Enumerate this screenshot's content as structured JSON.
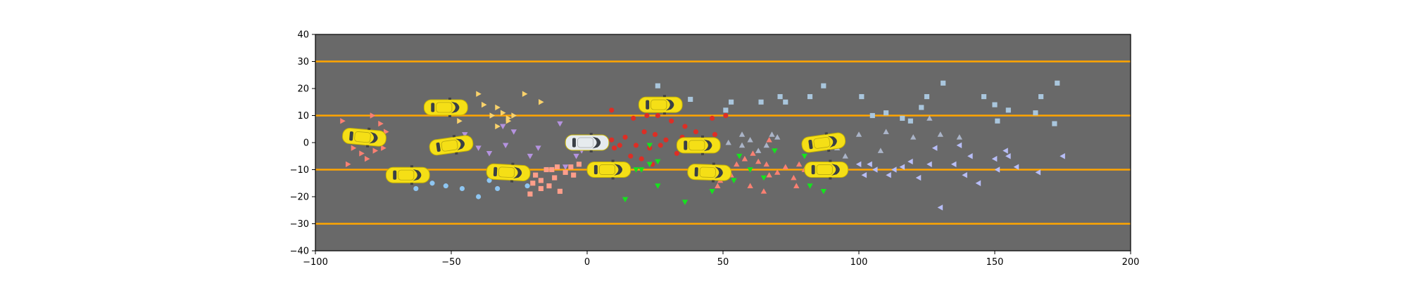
{
  "chart_data": {
    "type": "scatter",
    "title": "",
    "xlabel": "",
    "ylabel": "",
    "xlim": [
      -100,
      200
    ],
    "ylim": [
      -40,
      40
    ],
    "x_ticks": [
      -100,
      -50,
      0,
      50,
      100,
      150,
      200
    ],
    "y_ticks": [
      -40,
      -30,
      -20,
      -10,
      0,
      10,
      20,
      30,
      40
    ],
    "grid": false,
    "legend": "none",
    "background_color": "#696969",
    "lane_line_color": "#FFA500",
    "lane_lines_y": [
      30,
      10,
      -10,
      -30
    ],
    "ego_vehicle": {
      "x": 0,
      "y": 0,
      "heading_deg": 0,
      "color": "#e6ebee"
    },
    "vehicles": [
      {
        "x": -82,
        "y": 2,
        "heading_deg": 5,
        "color": "#f5df16"
      },
      {
        "x": -52,
        "y": 13,
        "heading_deg": 0,
        "color": "#f5df16"
      },
      {
        "x": -50,
        "y": -1,
        "heading_deg": -8,
        "color": "#f5df16"
      },
      {
        "x": -66,
        "y": -12,
        "heading_deg": 0,
        "color": "#f5df16"
      },
      {
        "x": -29,
        "y": -11,
        "heading_deg": 3,
        "color": "#f5df16"
      },
      {
        "x": 8,
        "y": -10,
        "heading_deg": 0,
        "color": "#f5df16"
      },
      {
        "x": 27,
        "y": 14,
        "heading_deg": 0,
        "color": "#f5df16"
      },
      {
        "x": 41,
        "y": -1,
        "heading_deg": 0,
        "color": "#f5df16"
      },
      {
        "x": 45,
        "y": -11,
        "heading_deg": 2,
        "color": "#f5df16"
      },
      {
        "x": 87,
        "y": 0,
        "heading_deg": -8,
        "color": "#f5df16"
      },
      {
        "x": 88,
        "y": -10,
        "heading_deg": 0,
        "color": "#f5df16"
      }
    ],
    "series": [
      {
        "marker": "triangle-right",
        "color": "#fa8072",
        "points": [
          [
            -90,
            8
          ],
          [
            -79,
            10
          ],
          [
            -76,
            7
          ],
          [
            -74,
            4
          ],
          [
            -77,
            1
          ],
          [
            -86,
            -2
          ],
          [
            -83,
            -4
          ],
          [
            -81,
            -6
          ],
          [
            -78,
            -3
          ],
          [
            -88,
            -8
          ],
          [
            -75,
            -2
          ]
        ]
      },
      {
        "marker": "triangle-right",
        "color": "#f9d26b",
        "points": [
          [
            -40,
            18
          ],
          [
            -38,
            14
          ],
          [
            -35,
            10
          ],
          [
            -33,
            13
          ],
          [
            -31,
            11
          ],
          [
            -29,
            9
          ],
          [
            -27,
            10
          ],
          [
            -33,
            6
          ],
          [
            -29,
            8
          ],
          [
            -23,
            18
          ],
          [
            -17,
            15
          ],
          [
            -47,
            8
          ]
        ]
      },
      {
        "marker": "triangle-down",
        "color": "#b593e0",
        "points": [
          [
            -45,
            3
          ],
          [
            -40,
            -2
          ],
          [
            -36,
            -4
          ],
          [
            -31,
            6
          ],
          [
            -27,
            4
          ],
          [
            -21,
            -5
          ],
          [
            -18,
            -2
          ],
          [
            -10,
            7
          ],
          [
            -4,
            -5
          ],
          [
            -8,
            -9
          ],
          [
            -2,
            -3
          ],
          [
            -30,
            -1
          ]
        ]
      },
      {
        "marker": "circle",
        "color": "#8ec6f2",
        "points": [
          [
            -63,
            -17
          ],
          [
            -57,
            -15
          ],
          [
            -52,
            -16
          ],
          [
            -46,
            -17
          ],
          [
            -40,
            -20
          ],
          [
            -33,
            -17
          ],
          [
            -22,
            -16
          ],
          [
            -36,
            -14
          ]
        ]
      },
      {
        "marker": "square",
        "color": "#ff9e8a",
        "points": [
          [
            -21,
            -19
          ],
          [
            -19,
            -12
          ],
          [
            -17,
            -14
          ],
          [
            -14,
            -16
          ],
          [
            -12,
            -13
          ],
          [
            -10,
            -18
          ],
          [
            -8,
            -11
          ],
          [
            -6,
            -9
          ],
          [
            -3,
            -8
          ],
          [
            -15,
            -10
          ],
          [
            -20,
            -15
          ],
          [
            -11,
            -9
          ],
          [
            -5,
            -12
          ],
          [
            -17,
            -17
          ],
          [
            -13,
            -10
          ]
        ]
      },
      {
        "marker": "circle",
        "color": "#dd2e25",
        "points": [
          [
            9,
            12
          ],
          [
            17,
            9
          ],
          [
            22,
            10
          ],
          [
            26,
            10
          ],
          [
            31,
            8
          ],
          [
            36,
            6
          ],
          [
            40,
            4
          ],
          [
            47,
            3
          ],
          [
            46,
            9
          ],
          [
            51,
            10
          ],
          [
            21,
            4
          ],
          [
            25,
            3
          ],
          [
            29,
            1
          ],
          [
            18,
            -1
          ],
          [
            23,
            -2
          ],
          [
            12,
            -1
          ],
          [
            16,
            -5
          ],
          [
            14,
            2
          ],
          [
            20,
            -6
          ],
          [
            24,
            -8
          ],
          [
            33,
            -4
          ],
          [
            35,
            2
          ],
          [
            9,
            1
          ],
          [
            10,
            -2
          ],
          [
            27,
            -1
          ],
          [
            38,
            -2
          ],
          [
            42,
            -3
          ]
        ]
      },
      {
        "marker": "triangle-down",
        "color": "#15e31e",
        "points": [
          [
            14,
            -21
          ],
          [
            20,
            -10
          ],
          [
            23,
            -8
          ],
          [
            26,
            -16
          ],
          [
            23,
            -1
          ],
          [
            26,
            -7
          ],
          [
            36,
            -22
          ],
          [
            46,
            -18
          ],
          [
            54,
            -14
          ],
          [
            60,
            -10
          ],
          [
            65,
            -13
          ],
          [
            69,
            -3
          ],
          [
            56,
            -5
          ],
          [
            82,
            -16
          ],
          [
            87,
            -18
          ],
          [
            80,
            -5
          ],
          [
            18,
            -10
          ],
          [
            38,
            -12
          ]
        ]
      },
      {
        "marker": "triangle-up",
        "color": "#fa8072",
        "points": [
          [
            49,
            -14
          ],
          [
            53,
            -12
          ],
          [
            55,
            -8
          ],
          [
            58,
            -6
          ],
          [
            61,
            -4
          ],
          [
            63,
            -7
          ],
          [
            66,
            -8
          ],
          [
            67,
            1
          ],
          [
            70,
            -11
          ],
          [
            73,
            -9
          ],
          [
            76,
            -13
          ],
          [
            78,
            -8
          ],
          [
            80,
            -10
          ],
          [
            84,
            -9
          ],
          [
            65,
            -18
          ],
          [
            77,
            -16
          ],
          [
            60,
            -16
          ],
          [
            48,
            -16
          ],
          [
            67,
            -12
          ]
        ]
      },
      {
        "marker": "triangle-up",
        "color": "#aab4c8",
        "points": [
          [
            48,
            -1
          ],
          [
            52,
            0
          ],
          [
            57,
            3
          ],
          [
            60,
            1
          ],
          [
            63,
            -3
          ],
          [
            66,
            -1
          ],
          [
            70,
            2
          ],
          [
            68,
            3
          ],
          [
            57,
            -1
          ],
          [
            100,
            3
          ],
          [
            110,
            4
          ],
          [
            120,
            2
          ],
          [
            130,
            3
          ],
          [
            137,
            2
          ],
          [
            126,
            9
          ],
          [
            92,
            -2
          ],
          [
            108,
            -3
          ],
          [
            95,
            -5
          ]
        ]
      },
      {
        "marker": "square",
        "color": "#a9c6dd",
        "points": [
          [
            26,
            21
          ],
          [
            38,
            16
          ],
          [
            51,
            12
          ],
          [
            53,
            15
          ],
          [
            64,
            15
          ],
          [
            71,
            17
          ],
          [
            73,
            15
          ],
          [
            82,
            17
          ],
          [
            87,
            21
          ],
          [
            101,
            17
          ],
          [
            105,
            10
          ],
          [
            110,
            11
          ],
          [
            119,
            8
          ],
          [
            123,
            13
          ],
          [
            125,
            17
          ],
          [
            131,
            22
          ],
          [
            146,
            17
          ],
          [
            151,
            8
          ],
          [
            150,
            14
          ],
          [
            155,
            12
          ],
          [
            165,
            11
          ],
          [
            167,
            17
          ],
          [
            172,
            7
          ],
          [
            173,
            22
          ],
          [
            116,
            9
          ]
        ]
      },
      {
        "marker": "triangle-left",
        "color": "#b7bdf7",
        "points": [
          [
            100,
            -8
          ],
          [
            104,
            -8
          ],
          [
            106,
            -10
          ],
          [
            111,
            -12
          ],
          [
            113,
            -10
          ],
          [
            116,
            -9
          ],
          [
            119,
            -7
          ],
          [
            122,
            -13
          ],
          [
            126,
            -8
          ],
          [
            130,
            -24
          ],
          [
            135,
            -8
          ],
          [
            139,
            -12
          ],
          [
            144,
            -15
          ],
          [
            137,
            -1
          ],
          [
            141,
            -5
          ],
          [
            150,
            -6
          ],
          [
            155,
            -5
          ],
          [
            158,
            -9
          ],
          [
            151,
            -10
          ],
          [
            166,
            -11
          ],
          [
            175,
            -5
          ],
          [
            102,
            -12
          ],
          [
            128,
            -2
          ],
          [
            154,
            -3
          ]
        ]
      }
    ]
  }
}
